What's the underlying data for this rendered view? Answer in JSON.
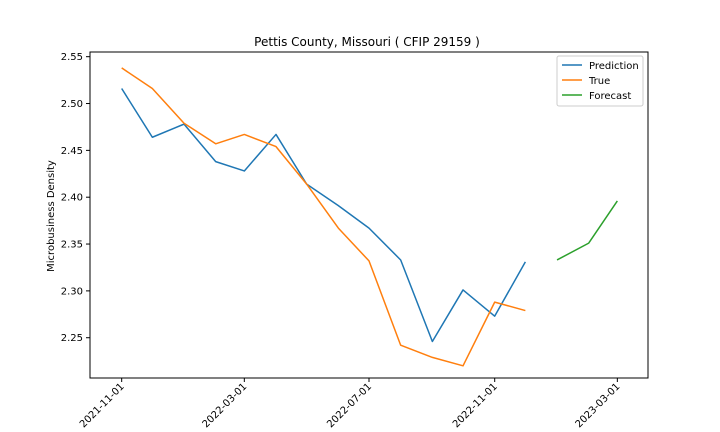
{
  "chart_data": {
    "type": "line",
    "title": "Pettis County, Missouri ( CFIP 29159 )",
    "xlabel": "",
    "ylabel": "Microbusiness Density",
    "xlim": [
      "2021-10-01",
      "2023-03-31"
    ],
    "ylim": [
      2.207,
      2.555
    ],
    "x_ticks": [
      "2021-11-01",
      "2022-03-01",
      "2022-07-01",
      "2022-11-01",
      "2023-03-01"
    ],
    "y_ticks": [
      "2.25",
      "2.30",
      "2.35",
      "2.40",
      "2.45",
      "2.50",
      "2.55"
    ],
    "legend_position": "top-right",
    "series": [
      {
        "name": "Prediction",
        "color": "#1f77b4",
        "x": [
          "2021-11-01",
          "2021-12-01",
          "2022-01-01",
          "2022-02-01",
          "2022-03-01",
          "2022-04-01",
          "2022-05-01",
          "2022-06-01",
          "2022-07-01",
          "2022-08-01",
          "2022-09-01",
          "2022-10-01",
          "2022-11-01",
          "2022-12-01"
        ],
        "values": [
          2.516,
          2.464,
          2.478,
          2.438,
          2.428,
          2.467,
          2.414,
          2.391,
          2.367,
          2.333,
          2.246,
          2.301,
          2.273,
          2.331
        ]
      },
      {
        "name": "True",
        "color": "#ff7f0e",
        "x": [
          "2021-11-01",
          "2021-12-01",
          "2022-01-01",
          "2022-02-01",
          "2022-03-01",
          "2022-04-01",
          "2022-05-01",
          "2022-06-01",
          "2022-07-01",
          "2022-08-01",
          "2022-09-01",
          "2022-10-01",
          "2022-11-01",
          "2022-12-01"
        ],
        "values": [
          2.538,
          2.516,
          2.479,
          2.457,
          2.467,
          2.454,
          2.414,
          2.367,
          2.332,
          2.242,
          2.229,
          2.22,
          2.288,
          2.279
        ]
      },
      {
        "name": "Forecast",
        "color": "#2ca02c",
        "x": [
          "2023-01-01",
          "2023-02-01",
          "2023-03-01"
        ],
        "values": [
          2.333,
          2.351,
          2.396
        ]
      }
    ]
  }
}
